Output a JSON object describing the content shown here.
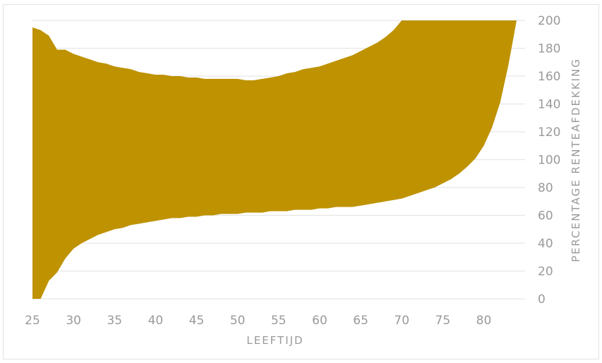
{
  "chart_data": {
    "type": "area",
    "title": "",
    "xlabel": "LEEFTIJD",
    "ylabel": "PERCENTAGE RENTEAFDEKKING",
    "xlim": [
      25,
      84
    ],
    "ylim": [
      0,
      200
    ],
    "xticks": [
      25,
      30,
      35,
      40,
      45,
      50,
      55,
      60,
      65,
      70,
      75,
      80
    ],
    "yticks": [
      0,
      20,
      40,
      60,
      80,
      100,
      120,
      140,
      160,
      180,
      200
    ],
    "grid": true,
    "y_axis_side": "right",
    "legend": "none",
    "fill_color": "#BE9200",
    "grid_color": "#e6e6e6",
    "series": [
      {
        "role": "upper",
        "x": [
          25,
          26,
          27,
          28,
          29,
          30,
          31,
          32,
          33,
          34,
          35,
          36,
          37,
          38,
          39,
          40,
          41,
          42,
          43,
          44,
          45,
          46,
          47,
          48,
          49,
          50,
          51,
          52,
          53,
          54,
          55,
          56,
          57,
          58,
          59,
          60,
          61,
          62,
          63,
          64,
          65,
          66,
          67,
          68,
          69,
          70,
          71,
          72,
          73,
          74,
          75,
          76,
          77,
          78,
          79,
          80,
          81,
          82,
          83,
          84
        ],
        "values": [
          195,
          193,
          189,
          179,
          179,
          176,
          174,
          172,
          170,
          169,
          167,
          166,
          165,
          163,
          162,
          161,
          161,
          160,
          160,
          159,
          159,
          158,
          158,
          158,
          158,
          158,
          157,
          157,
          158,
          159,
          160,
          162,
          163,
          165,
          166,
          167,
          169,
          171,
          173,
          175,
          178,
          181,
          184,
          188,
          193,
          200,
          200,
          200,
          200,
          200,
          200,
          200,
          200,
          200,
          200,
          200,
          200,
          200,
          200,
          200
        ]
      },
      {
        "role": "lower",
        "x": [
          25,
          26,
          27,
          28,
          29,
          30,
          31,
          32,
          33,
          34,
          35,
          36,
          37,
          38,
          39,
          40,
          41,
          42,
          43,
          44,
          45,
          46,
          47,
          48,
          49,
          50,
          51,
          52,
          53,
          54,
          55,
          56,
          57,
          58,
          59,
          60,
          61,
          62,
          63,
          64,
          65,
          66,
          67,
          68,
          69,
          70,
          71,
          72,
          73,
          74,
          75,
          76,
          77,
          78,
          79,
          80,
          81,
          82,
          83,
          84
        ],
        "values": [
          0,
          0,
          13,
          19,
          29,
          36,
          40,
          43,
          46,
          48,
          50,
          51,
          53,
          54,
          55,
          56,
          57,
          58,
          58,
          59,
          59,
          60,
          60,
          61,
          61,
          61,
          62,
          62,
          62,
          63,
          63,
          63,
          64,
          64,
          64,
          65,
          65,
          66,
          66,
          66,
          67,
          68,
          69,
          70,
          71,
          72,
          74,
          76,
          78,
          80,
          83,
          86,
          90,
          95,
          101,
          110,
          123,
          141,
          168,
          200
        ]
      }
    ]
  }
}
